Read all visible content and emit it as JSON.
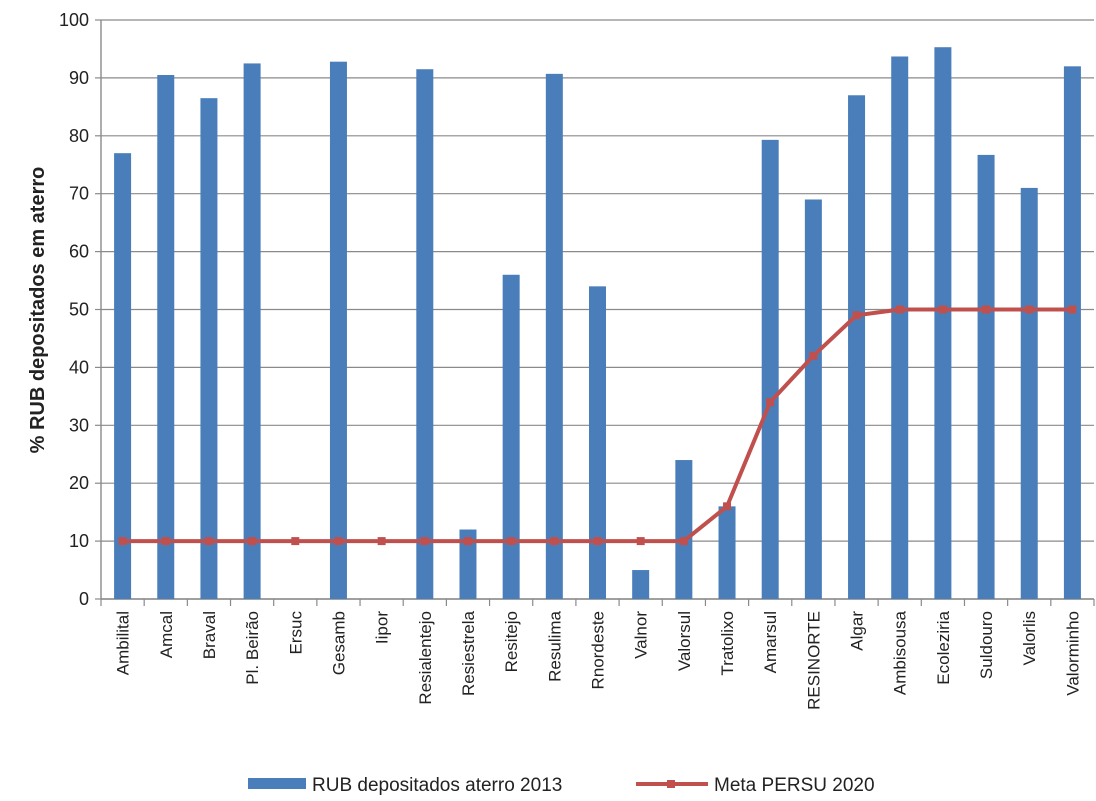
{
  "chart_data": {
    "type": "bar",
    "title": "",
    "xlabel": "",
    "ylabel": "% RUB depositados em aterro",
    "ylim": [
      0,
      100
    ],
    "yticks": [
      0,
      10,
      20,
      30,
      40,
      50,
      60,
      70,
      80,
      90,
      100
    ],
    "grid": true,
    "legend_position": "bottom",
    "categories": [
      "Ambilital",
      "Amcal",
      "Braval",
      "Pl. Beirão",
      "Ersuc",
      "Gesamb",
      "Iipor",
      "Resialentejo",
      "Resiestrela",
      "Resitejo",
      "Resulima",
      "Rnordeste",
      "Valnor",
      "Valorsul",
      "Tratolixo",
      "Amarsul",
      "RESINORTE",
      "Algar",
      "Ambisousa",
      "Ecoleziria",
      "Suldouro",
      "Valorlis",
      "Valorminho"
    ],
    "series": [
      {
        "name": "RUB depositados  aterro 2013",
        "type": "bar",
        "color": "#4a7ebb",
        "values": [
          77,
          90.5,
          86.5,
          92.5,
          null,
          92.8,
          null,
          91.5,
          12,
          56,
          90.7,
          54,
          5,
          24,
          16,
          79.3,
          69,
          87,
          93.7,
          95.3,
          76.7,
          71,
          92
        ]
      },
      {
        "name": "Meta PERSU 2020",
        "type": "line",
        "color": "#c0504d",
        "values": [
          10,
          10,
          10,
          10,
          10,
          10,
          10,
          10,
          10,
          10,
          10,
          10,
          10,
          10,
          16,
          34,
          42,
          49,
          50,
          50,
          50,
          50,
          50
        ]
      }
    ]
  }
}
